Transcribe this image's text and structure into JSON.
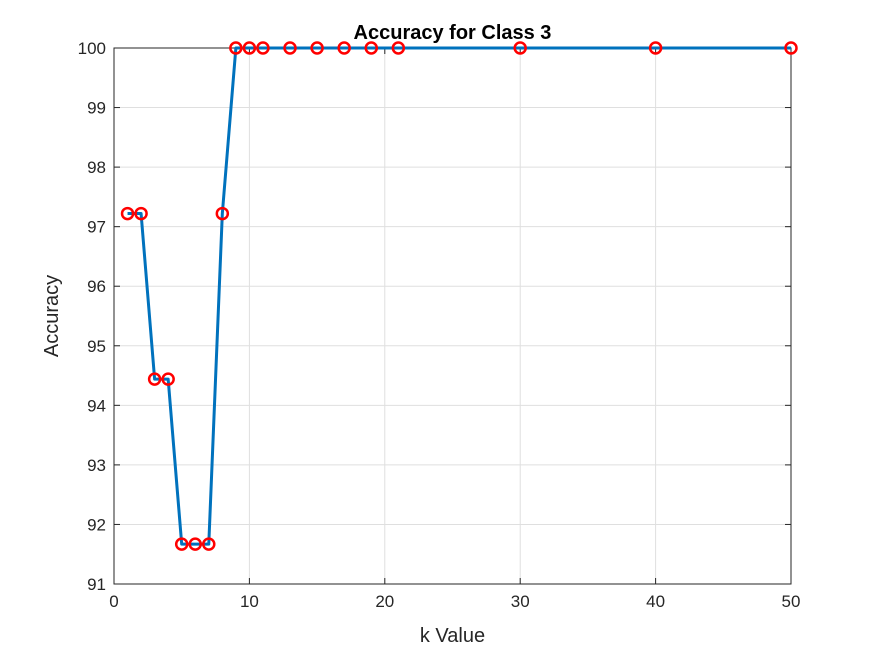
{
  "chart_data": {
    "type": "line",
    "title": "Accuracy for Class 3",
    "xlabel": "k Value",
    "ylabel": "Accuracy",
    "xlim": [
      0,
      50
    ],
    "ylim": [
      91,
      100
    ],
    "xticks": [
      0,
      10,
      20,
      30,
      40,
      50
    ],
    "yticks": [
      91,
      92,
      93,
      94,
      95,
      96,
      97,
      98,
      99,
      100
    ],
    "grid": true,
    "series": [
      {
        "x": [
          1,
          2,
          3,
          4,
          5,
          6,
          7,
          8,
          9,
          10,
          11,
          13,
          15,
          17,
          19,
          21,
          30,
          40,
          50
        ],
        "y": [
          97.22,
          97.22,
          94.44,
          94.44,
          91.67,
          91.67,
          91.67,
          97.22,
          100,
          100,
          100,
          100,
          100,
          100,
          100,
          100,
          100,
          100,
          100
        ],
        "line_color": "#0072BD",
        "marker": "circle",
        "marker_color": "#FF0000"
      }
    ]
  }
}
